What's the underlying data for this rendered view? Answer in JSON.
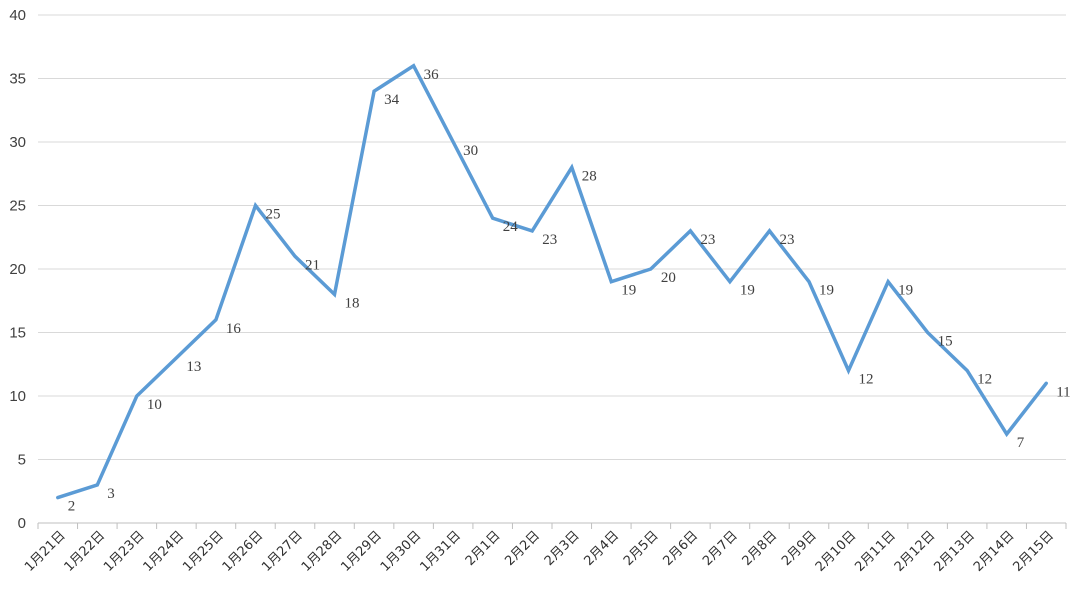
{
  "chart_data": {
    "type": "line",
    "title": "",
    "xlabel": "",
    "ylabel": "",
    "ylim": [
      0,
      40
    ],
    "y_ticks": [
      0,
      5,
      10,
      15,
      20,
      25,
      30,
      35,
      40
    ],
    "grid": true,
    "legend": "none",
    "categories": [
      "1月21日",
      "1月22日",
      "1月23日",
      "1月24日",
      "1月25日",
      "1月26日",
      "1月27日",
      "1月28日",
      "1月29日",
      "1月30日",
      "1月31日",
      "2月1日",
      "2月2日",
      "2月3日",
      "2月4日",
      "2月5日",
      "2月6日",
      "2月7日",
      "2月8日",
      "2月9日",
      "2月10日",
      "2月11日",
      "2月12日",
      "2月13日",
      "2月14日",
      "2月15日"
    ],
    "series": [
      {
        "color": "#5b9bd5",
        "values": [
          2,
          3,
          10,
          13,
          16,
          25,
          21,
          18,
          34,
          36,
          30,
          24,
          23,
          28,
          19,
          20,
          23,
          19,
          23,
          19,
          12,
          19,
          15,
          12,
          7,
          11
        ]
      }
    ]
  }
}
